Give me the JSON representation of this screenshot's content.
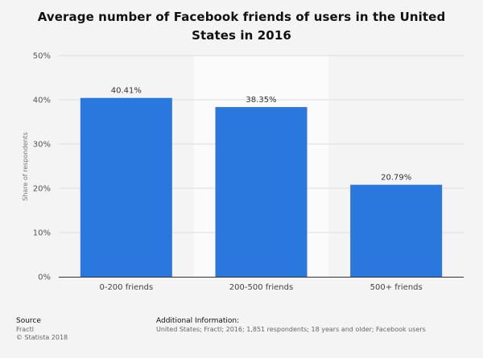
{
  "chart_data": {
    "type": "bar",
    "title": "Average number of Facebook friends of users in the United States in 2016",
    "xlabel": "",
    "ylabel": "Share of respondents",
    "categories": [
      "0-200 friends",
      "200-500 friends",
      "500+ friends"
    ],
    "values": [
      40.41,
      38.35,
      20.79
    ],
    "value_labels": [
      "40.41%",
      "38.35%",
      "20.79%"
    ],
    "ylim": [
      0,
      50
    ],
    "yticks": [
      0,
      10,
      20,
      30,
      40,
      50
    ],
    "ytick_labels": [
      "0%",
      "10%",
      "20%",
      "30%",
      "40%",
      "50%"
    ],
    "grid": true,
    "highlighted_category": "200-500 friends",
    "bar_color": "#2a78de"
  },
  "footer": {
    "source_heading": "Source",
    "source_name": "Fractl",
    "copyright": "© Statista 2018",
    "info_heading": "Additional Information:",
    "info_text": "United States; Fractl; 2016; 1,851 respondents; 18 years and older; Facebook users"
  }
}
